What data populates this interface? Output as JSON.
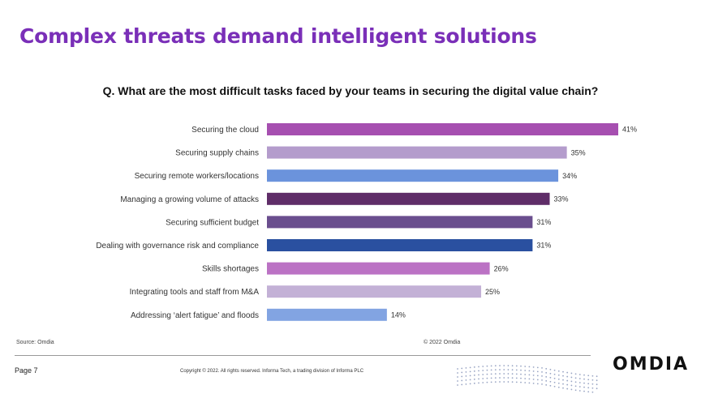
{
  "slide": {
    "title": "Complex threats demand intelligent solutions",
    "question": "Q. What are the most difficult tasks faced by your teams in securing the digital value chain?"
  },
  "chart_data": {
    "type": "bar",
    "orientation": "horizontal",
    "categories": [
      "Securing the cloud",
      "Securing supply chains",
      "Securing remote workers/locations",
      "Managing a growing volume of attacks",
      "Securing sufficient budget",
      "Dealing with governance risk and compliance",
      "Skills shortages",
      "Integrating tools and staff from M&A",
      "Addressing ‘alert fatigue’ and floods"
    ],
    "values": [
      41,
      35,
      34,
      33,
      31,
      31,
      26,
      25,
      14
    ],
    "value_labels": [
      "41%",
      "35%",
      "34%",
      "33%",
      "31%",
      "31%",
      "26%",
      "25%",
      "14%"
    ],
    "colors": [
      "#a64fb0",
      "#b49ccc",
      "#6b93dc",
      "#5f2d68",
      "#6a4e8e",
      "#2a50a0",
      "#bb72c4",
      "#c3b1d6",
      "#82a4e2"
    ],
    "xlim": [
      0,
      41
    ],
    "grid": false,
    "legend": "none"
  },
  "footer": {
    "source": "Source: Omdia",
    "chart_copyright": "© 2022 Omdia",
    "page": "Page 7",
    "copyright": "Copyright © 2022. All rights reserved. Informa Tech, a trading division of Informa PLC",
    "logo": "OMDIA"
  },
  "colors": {
    "title": "#7a2fb8",
    "dots": "#9aa6c4"
  }
}
